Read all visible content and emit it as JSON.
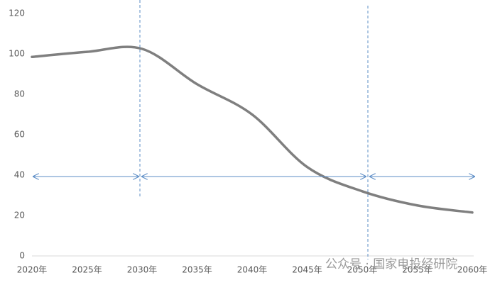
{
  "chart_data": {
    "type": "line",
    "categories": [
      "2020年",
      "2025年",
      "2030年",
      "2035年",
      "2040年",
      "2045年",
      "2050年",
      "2055年",
      "2060年"
    ],
    "series": [
      {
        "color": "#7f7f7f",
        "values": [
          98.5,
          101,
          102.5,
          85,
          70,
          44,
          32,
          25,
          21.5
        ]
      }
    ],
    "ylim": [
      0,
      120
    ],
    "yticks": [
      0,
      20,
      40,
      60,
      80,
      100,
      120
    ],
    "grid": false,
    "watermark": "公众号 · 国家电投经研院"
  }
}
